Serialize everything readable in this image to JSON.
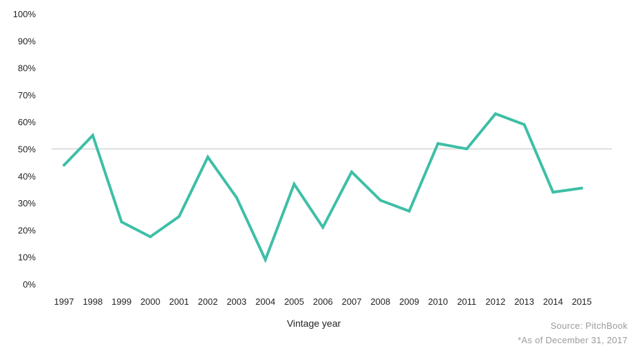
{
  "chart_data": {
    "type": "line",
    "title": "",
    "xlabel": "Vintage year",
    "ylabel": "",
    "ylim": [
      0,
      100
    ],
    "y_unit": "%",
    "yticks": [
      "0%",
      "10%",
      "20%",
      "30%",
      "40%",
      "50%",
      "60%",
      "70%",
      "80%",
      "90%",
      "100%"
    ],
    "categories": [
      "1997",
      "1998",
      "1999",
      "2000",
      "2001",
      "2002",
      "2003",
      "2004",
      "2005",
      "2006",
      "2007",
      "2008",
      "2009",
      "2010",
      "2011",
      "2012",
      "2013",
      "2014",
      "2015"
    ],
    "series": [
      {
        "values": [
          44,
          55,
          23,
          17.5,
          25,
          47,
          32,
          9,
          37,
          21,
          41.5,
          31,
          27,
          52,
          50,
          63,
          59,
          34,
          35.5
        ],
        "color": "#3dbfa6"
      }
    ],
    "reference_line": {
      "y": 50,
      "color": "#cccccc"
    },
    "grid": false,
    "legend": "none"
  },
  "footer": {
    "source": "Source: PitchBook",
    "note": "*As of December 31, 2017"
  }
}
